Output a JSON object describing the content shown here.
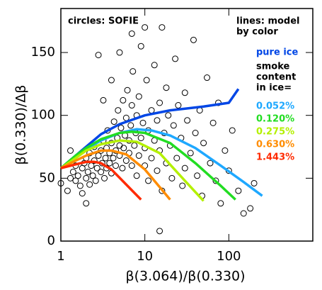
{
  "chart_data": {
    "type": "scatter",
    "xlabel": "β(3.064)/β(0.330)",
    "ylabel": "β(0.330)/Δβ",
    "xscale": "log",
    "xlim": [
      1,
      1000
    ],
    "xticks": [
      1,
      10,
      100
    ],
    "ylim": [
      0,
      185
    ],
    "yticks": [
      0,
      50,
      100,
      150
    ],
    "annotations": [
      "circles: SOFIE",
      "lines: model",
      "by color",
      "smoke",
      "content",
      "in ice="
    ],
    "series": [
      {
        "name": "circles: SOFIE",
        "color": "#000000",
        "mode": "markers",
        "x": [
          1.0,
          1.2,
          1.3,
          1.4,
          1.5,
          1.5,
          1.6,
          1.7,
          1.8,
          1.8,
          1.9,
          2.0,
          2.0,
          2.1,
          2.2,
          2.2,
          2.3,
          2.4,
          2.5,
          2.5,
          2.6,
          2.7,
          2.8,
          2.8,
          3.0,
          3.0,
          3.1,
          3.2,
          3.3,
          3.4,
          3.5,
          3.5,
          3.6,
          3.8,
          3.8,
          4.0,
          4.0,
          4.2,
          4.3,
          4.5,
          4.5,
          4.7,
          4.8,
          5.0,
          5.0,
          5.2,
          5.4,
          5.5,
          5.6,
          5.8,
          6.0,
          6.0,
          6.2,
          6.5,
          6.5,
          6.8,
          7.0,
          7.0,
          7.2,
          7.5,
          7.8,
          8.0,
          8.0,
          8.5,
          8.5,
          9.0,
          9.0,
          9.5,
          10,
          10,
          10.5,
          11,
          11,
          12,
          12,
          13,
          13,
          14,
          14,
          15,
          15,
          16,
          16,
          17,
          18,
          18,
          19,
          20,
          21,
          22,
          23,
          24,
          25,
          27,
          28,
          30,
          30,
          32,
          35,
          38,
          40,
          42,
          45,
          48,
          50,
          55,
          60,
          65,
          70,
          75,
          80,
          90,
          100,
          110,
          130,
          150,
          180,
          200,
          15,
          2.0,
          1.3,
          3.2,
          10,
          7,
          5,
          4
        ],
        "values": [
          46,
          40,
          50,
          55,
          48,
          60,
          52,
          44,
          58,
          38,
          62,
          50,
          66,
          55,
          45,
          70,
          60,
          52,
          64,
          75,
          48,
          58,
          68,
          148,
          55,
          72,
          62,
          80,
          50,
          66,
          74,
          58,
          88,
          62,
          70,
          78,
          54,
          66,
          95,
          72,
          60,
          82,
          104,
          68,
          76,
          90,
          58,
          112,
          74,
          84,
          64,
          98,
          120,
          80,
          70,
          92,
          60,
          108,
          135,
          76,
          86,
          100,
          52,
          115,
          68,
          82,
          155,
          94,
          60,
          74,
          128,
          88,
          48,
          104,
          66,
          140,
          80,
          56,
          96,
          110,
          72,
          170,
          40,
          86,
          62,
          122,
          100,
          76,
          50,
          92,
          145,
          66,
          108,
          82,
          44,
          118,
          58,
          96,
          70,
          160,
          86,
          52,
          104,
          36,
          78,
          130,
          62,
          94,
          48,
          110,
          30,
          72,
          56,
          88,
          40,
          22,
          26,
          46,
          8,
          30,
          72,
          112,
          170,
          165,
          150,
          128
        ]
      },
      {
        "name": "pure ice",
        "color": "#0046e6",
        "mode": "lines",
        "x": [
          1,
          1.5,
          2,
          3,
          5,
          10,
          20,
          50,
          100,
          130
        ],
        "values": [
          58,
          68,
          75,
          85,
          93,
          100,
          104,
          107,
          110,
          121
        ]
      },
      {
        "name": "0.052%",
        "color": "#1ea8ff",
        "mode": "lines",
        "x": [
          1,
          1.5,
          2,
          3,
          5,
          8,
          12,
          20,
          40,
          80,
          150,
          250
        ],
        "values": [
          58,
          67,
          73,
          80,
          86,
          89,
          88,
          84,
          74,
          60,
          47,
          36
        ]
      },
      {
        "name": "0.120%",
        "color": "#22dd22",
        "mode": "lines",
        "x": [
          1,
          1.5,
          2,
          3,
          5,
          7,
          10,
          20,
          40,
          80,
          120
        ],
        "values": [
          58,
          68,
          74,
          81,
          86,
          87,
          86,
          78,
          62,
          44,
          33
        ]
      },
      {
        "name": "0.275%",
        "color": "#b4f000",
        "mode": "lines",
        "x": [
          1,
          1.5,
          2,
          3,
          5,
          8,
          15,
          30,
          50
        ],
        "values": [
          58,
          66,
          72,
          77,
          80,
          79,
          70,
          48,
          32
        ]
      },
      {
        "name": "0.630%",
        "color": "#ff8c00",
        "mode": "lines",
        "x": [
          1,
          1.5,
          2,
          3,
          4,
          6,
          10,
          15,
          20
        ],
        "values": [
          58,
          64,
          68,
          72,
          72,
          69,
          57,
          43,
          33
        ]
      },
      {
        "name": "1.443%",
        "color": "#ff2a00",
        "mode": "lines",
        "x": [
          1,
          1.5,
          2,
          2.5,
          3,
          4,
          6,
          9
        ],
        "values": [
          58,
          61,
          63,
          63,
          62,
          57,
          45,
          33
        ]
      }
    ]
  }
}
